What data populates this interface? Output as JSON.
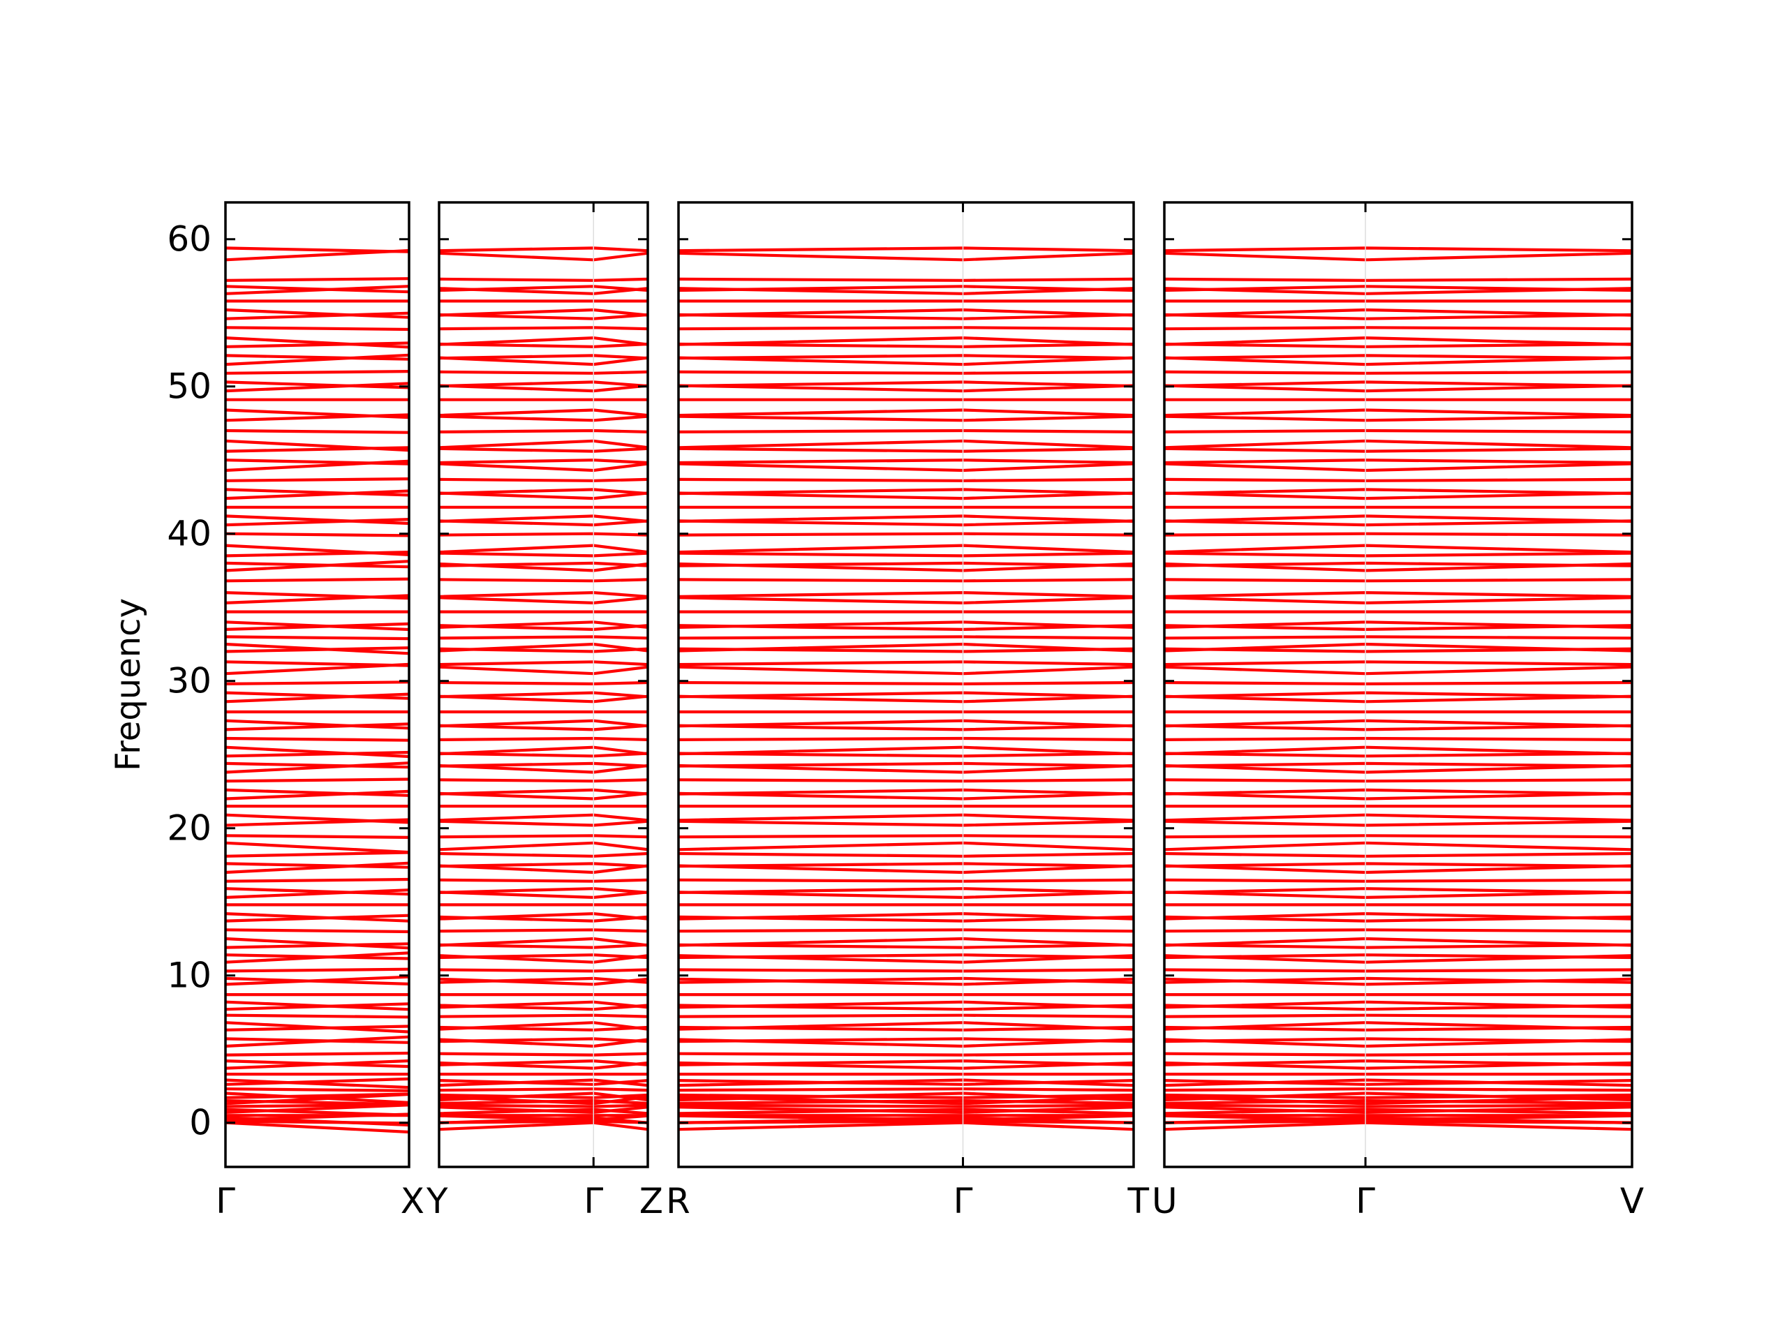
{
  "chart_data": {
    "type": "line",
    "ylabel": "Frequency",
    "ylim": [
      -3,
      62.5
    ],
    "yticks": [
      0,
      10,
      20,
      30,
      40,
      50,
      60
    ],
    "line_color": "#ff0000",
    "grid": false,
    "panels": [
      {
        "x_labels": [
          "Γ",
          "X"
        ],
        "segment_lengths": [
          1
        ]
      },
      {
        "x_labels": [
          "Y",
          "Γ",
          "Z"
        ],
        "segment_lengths": [
          0.74,
          0.26
        ]
      },
      {
        "x_labels": [
          "R",
          "Γ",
          "T"
        ],
        "segment_lengths": [
          0.625,
          0.375
        ]
      },
      {
        "x_labels": [
          "U",
          "Γ",
          "V"
        ],
        "segment_lengths": [
          0.43,
          0.57
        ]
      }
    ],
    "band_frequencies_at_gamma": [
      0.0,
      0.1,
      0.2,
      0.35,
      0.5,
      0.7,
      0.9,
      1.1,
      1.3,
      1.5,
      1.7,
      2.0,
      2.3,
      2.6,
      2.9,
      3.3,
      3.7,
      4.2,
      4.6,
      5.2,
      5.7,
      6.3,
      6.8,
      7.3,
      7.7,
      8.2,
      8.7,
      9.4,
      9.8,
      10.3,
      10.9,
      11.4,
      11.9,
      12.5,
      13.1,
      13.7,
      14.2,
      14.8,
      15.3,
      15.9,
      16.4,
      17.0,
      17.6,
      18.1,
      19.0,
      19.5,
      20.2,
      20.9,
      21.5,
      22.0,
      22.6,
      23.2,
      23.8,
      24.4,
      24.9,
      25.5,
      26.1,
      26.7,
      27.3,
      27.9,
      28.6,
      29.2,
      29.8,
      30.5,
      31.3,
      32.0,
      32.5,
      33.0,
      33.5,
      34.0,
      34.7,
      35.3,
      36.0,
      36.8,
      37.5,
      38.0,
      38.5,
      39.2,
      40.0,
      40.6,
      41.2,
      41.8,
      42.4,
      43.0,
      43.6,
      44.3,
      45.0,
      45.6,
      46.3,
      47.0,
      47.7,
      48.4,
      49.1,
      49.7,
      50.3,
      50.9,
      51.5,
      52.1,
      52.7,
      53.3,
      54.0,
      54.6,
      55.2,
      55.8,
      56.3,
      56.8,
      57.2,
      58.6,
      59.4
    ]
  }
}
